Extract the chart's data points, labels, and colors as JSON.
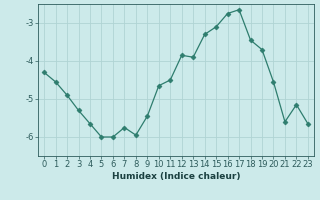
{
  "title": "",
  "xlabel": "Humidex (Indice chaleur)",
  "ylabel": "",
  "x": [
    0,
    1,
    2,
    3,
    4,
    5,
    6,
    7,
    8,
    9,
    10,
    11,
    12,
    13,
    14,
    15,
    16,
    17,
    18,
    19,
    20,
    21,
    22,
    23
  ],
  "y": [
    -4.3,
    -4.55,
    -4.9,
    -5.3,
    -5.65,
    -6.0,
    -6.0,
    -5.75,
    -5.95,
    -5.45,
    -4.65,
    -4.5,
    -3.85,
    -3.9,
    -3.3,
    -3.1,
    -2.75,
    -2.65,
    -3.45,
    -3.7,
    -4.55,
    -5.6,
    -5.15,
    -5.65
  ],
  "line_color": "#2e7d6e",
  "marker": "D",
  "marker_size": 2.5,
  "bg_color": "#cceaea",
  "grid_color": "#b0d4d4",
  "tick_color": "#2e5c5c",
  "label_color": "#1a4040",
  "ylim": [
    -6.5,
    -2.5
  ],
  "yticks": [
    -6,
    -5,
    -4,
    -3
  ],
  "xlim": [
    -0.5,
    23.5
  ],
  "tick_fontsize": 6,
  "xlabel_fontsize": 6.5
}
